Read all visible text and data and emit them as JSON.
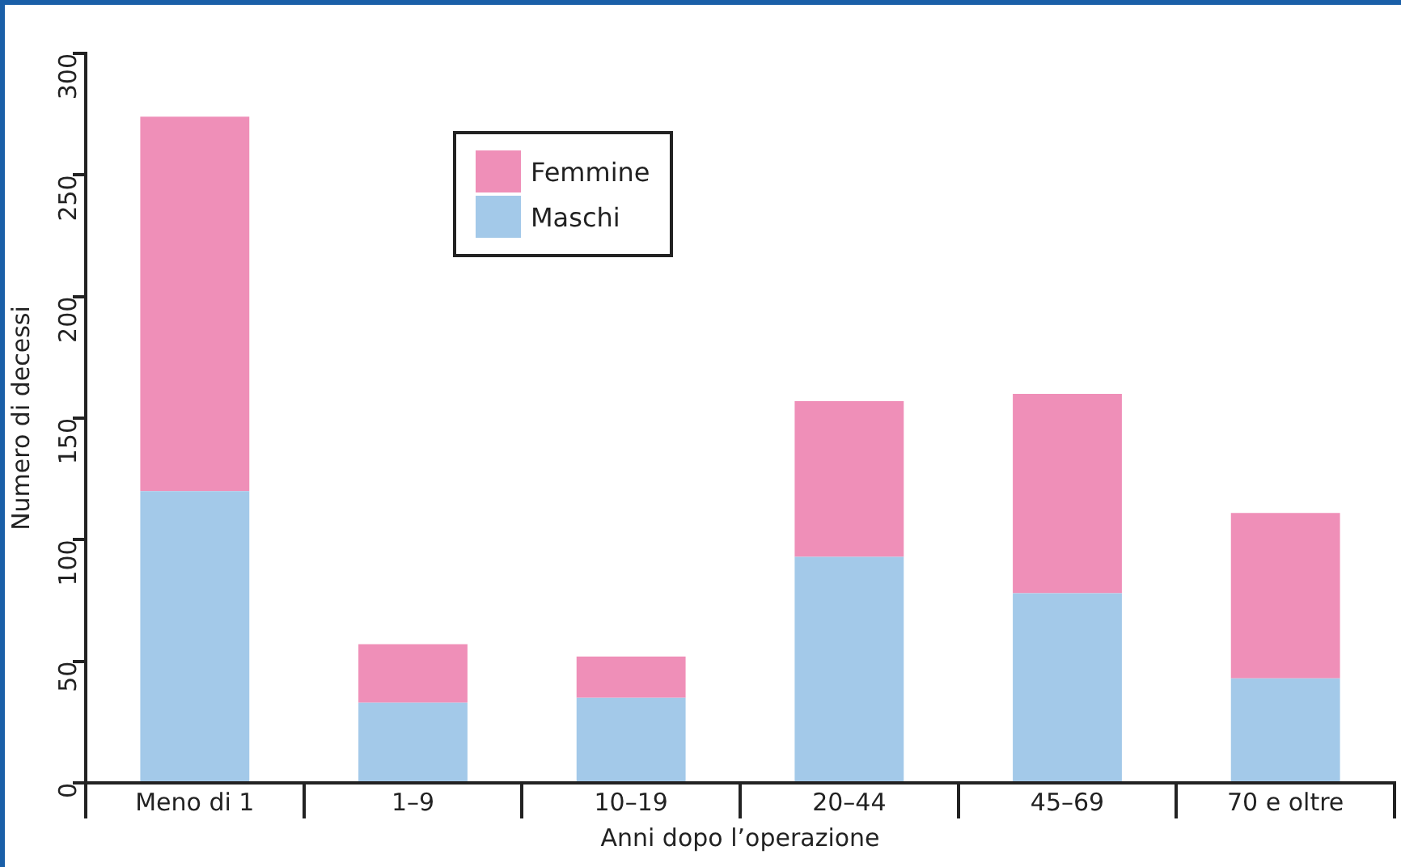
{
  "chart_data": {
    "type": "bar",
    "stacked": true,
    "xlabel": "Anni dopo l’operazione",
    "ylabel": "Numero di decessi",
    "categories": [
      "Meno di 1",
      "1–9",
      "10–19",
      "20–44",
      "45–69",
      "70 e oltre"
    ],
    "series": [
      {
        "name": "Maschi",
        "color": "#a3c9e9",
        "values": [
          120,
          33,
          35,
          93,
          78,
          43
        ]
      },
      {
        "name": "Femmine",
        "color": "#ef8fb8",
        "values": [
          154,
          24,
          17,
          64,
          82,
          68
        ]
      }
    ],
    "ylim": [
      0,
      300
    ],
    "yticks": [
      0,
      50,
      100,
      150,
      200,
      250,
      300
    ],
    "grid": false,
    "legend": "top left"
  }
}
